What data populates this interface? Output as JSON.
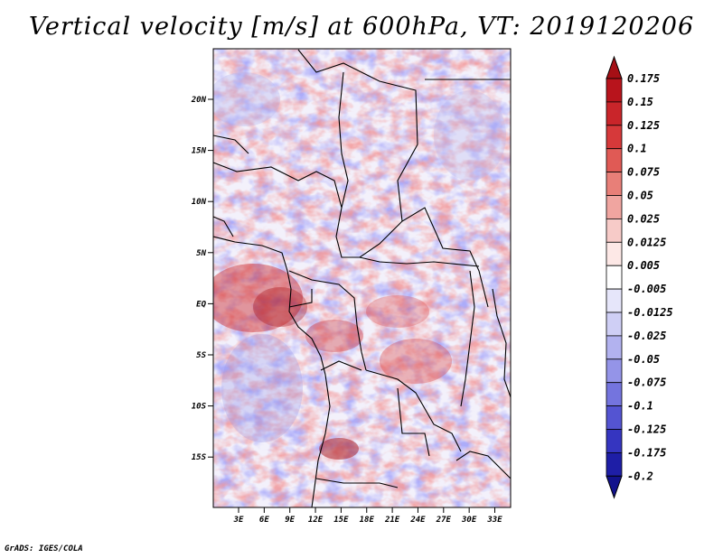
{
  "title": "Vertical velocity [m/s] at 600hPa, VT: 2019120206",
  "credit": "GrADS: IGES/COLA",
  "map": {
    "lat_labels": [
      "20N",
      "15N",
      "10N",
      "5N",
      "EQ",
      "5S",
      "10S",
      "15S"
    ],
    "lon_labels": [
      "3E",
      "6E",
      "9E",
      "12E",
      "15E",
      "18E",
      "21E",
      "24E",
      "27E",
      "30E",
      "33E"
    ],
    "coast_color": "#000000"
  },
  "colorbar": {
    "labels": [
      "0.175",
      "0.15",
      "0.125",
      "0.1",
      "0.075",
      "0.05",
      "0.025",
      "0.0125",
      "0.005",
      "-0.005",
      "-0.0125",
      "-0.025",
      "-0.05",
      "-0.075",
      "-0.1",
      "-0.125",
      "-0.175",
      "-0.2"
    ],
    "colors": [
      "#a50f15",
      "#b8141c",
      "#c9252a",
      "#d6393a",
      "#e05a55",
      "#e87f78",
      "#f0a5a0",
      "#f7cbc8",
      "#fde8e6",
      "#ffffff",
      "#e6e6fa",
      "#cfcff5",
      "#b2b2ef",
      "#9494e8",
      "#7474de",
      "#5454d2",
      "#3535c0",
      "#1e1ea6",
      "#12128c"
    ]
  }
}
